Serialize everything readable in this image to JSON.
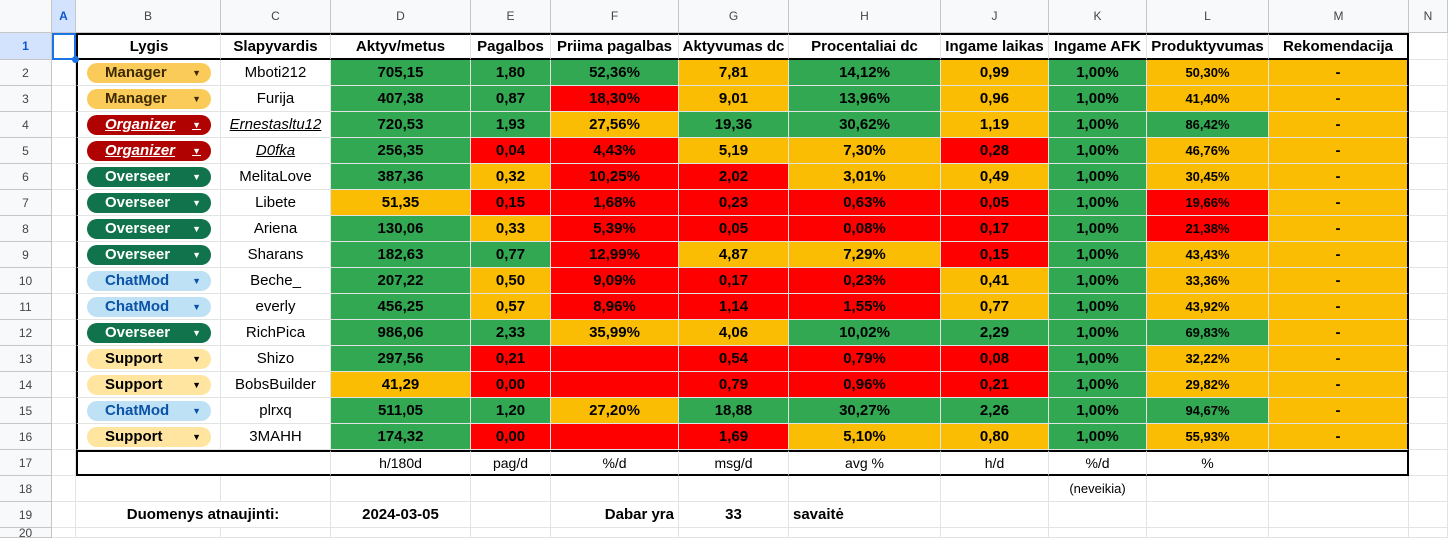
{
  "columns": [
    "A",
    "B",
    "C",
    "D",
    "E",
    "F",
    "G",
    "H",
    "J",
    "K",
    "L",
    "M",
    "N"
  ],
  "selected_column": "A",
  "selected_row": "1",
  "row_numbers": [
    "1",
    "2",
    "3",
    "4",
    "5",
    "6",
    "7",
    "8",
    "9",
    "10",
    "11",
    "12",
    "13",
    "14",
    "15",
    "16",
    "17",
    "18",
    "19",
    "20"
  ],
  "headers": [
    "Lygis",
    "Slapyvardis",
    "Aktyv/metus",
    "Pagalbos",
    "Priima pagalbas",
    "Aktyvumas dc",
    "Procentaliai dc",
    "Ingame laikas",
    "Ingame AFK",
    "Produktyvumas",
    "Rekomendacija"
  ],
  "role_styles": {
    "Manager": "manager",
    "Organizer": "organizer",
    "Overseer": "overseer",
    "ChatMod": "chatmod",
    "Support": "support"
  },
  "colors": {
    "green": "#33a853",
    "yellow": "#fbbc04",
    "red": "#ff0000",
    "selection": "#1a73e8"
  },
  "rows": [
    {
      "role": "Manager",
      "nick": "Mboti212",
      "aktyv": "705,15",
      "pag": "1,80",
      "priima": "52,36%",
      "akt_dc": "7,81",
      "proc_dc": "14,12%",
      "ingame": "0,99",
      "afk": "1,00%",
      "prod": "50,30%",
      "rek": "-",
      "c": [
        "g",
        "g",
        "g",
        "y",
        "g",
        "y",
        "g",
        "y",
        "y"
      ]
    },
    {
      "role": "Manager",
      "nick": "Furija",
      "aktyv": "407,38",
      "pag": "0,87",
      "priima": "18,30%",
      "akt_dc": "9,01",
      "proc_dc": "13,96%",
      "ingame": "0,96",
      "afk": "1,00%",
      "prod": "41,40%",
      "rek": "-",
      "c": [
        "g",
        "g",
        "r",
        "y",
        "g",
        "y",
        "g",
        "y",
        "y"
      ]
    },
    {
      "role": "Organizer",
      "nick": "Ernestasltu12",
      "link": true,
      "aktyv": "720,53",
      "pag": "1,93",
      "priima": "27,56%",
      "akt_dc": "19,36",
      "proc_dc": "30,62%",
      "ingame": "1,19",
      "afk": "1,00%",
      "prod": "86,42%",
      "rek": "-",
      "c": [
        "g",
        "g",
        "y",
        "g",
        "g",
        "y",
        "g",
        "g",
        "y"
      ]
    },
    {
      "role": "Organizer",
      "nick": "D0fka",
      "link": true,
      "aktyv": "256,35",
      "pag": "0,04",
      "priima": "4,43%",
      "akt_dc": "5,19",
      "proc_dc": "7,30%",
      "ingame": "0,28",
      "afk": "1,00%",
      "prod": "46,76%",
      "rek": "-",
      "c": [
        "g",
        "r",
        "r",
        "y",
        "y",
        "r",
        "g",
        "y",
        "y"
      ]
    },
    {
      "role": "Overseer",
      "nick": "MelitaLove",
      "aktyv": "387,36",
      "pag": "0,32",
      "priima": "10,25%",
      "akt_dc": "2,02",
      "proc_dc": "3,01%",
      "ingame": "0,49",
      "afk": "1,00%",
      "prod": "30,45%",
      "rek": "-",
      "c": [
        "g",
        "y",
        "r",
        "r",
        "y",
        "y",
        "g",
        "y",
        "y"
      ]
    },
    {
      "role": "Overseer",
      "nick": "Libete",
      "aktyv": "51,35",
      "pag": "0,15",
      "priima": "1,68%",
      "akt_dc": "0,23",
      "proc_dc": "0,63%",
      "ingame": "0,05",
      "afk": "1,00%",
      "prod": "19,66%",
      "rek": "-",
      "c": [
        "y",
        "r",
        "r",
        "r",
        "r",
        "r",
        "g",
        "r",
        "y"
      ]
    },
    {
      "role": "Overseer",
      "nick": "Ariena",
      "aktyv": "130,06",
      "pag": "0,33",
      "priima": "5,39%",
      "akt_dc": "0,05",
      "proc_dc": "0,08%",
      "ingame": "0,17",
      "afk": "1,00%",
      "prod": "21,38%",
      "rek": "-",
      "c": [
        "g",
        "y",
        "r",
        "r",
        "r",
        "r",
        "g",
        "r",
        "y"
      ]
    },
    {
      "role": "Overseer",
      "nick": "Sharans",
      "aktyv": "182,63",
      "pag": "0,77",
      "priima": "12,99%",
      "akt_dc": "4,87",
      "proc_dc": "7,29%",
      "ingame": "0,15",
      "afk": "1,00%",
      "prod": "43,43%",
      "rek": "-",
      "c": [
        "g",
        "g",
        "r",
        "y",
        "y",
        "r",
        "g",
        "y",
        "y"
      ]
    },
    {
      "role": "ChatMod",
      "nick": "Beche_",
      "aktyv": "207,22",
      "pag": "0,50",
      "priima": "9,09%",
      "akt_dc": "0,17",
      "proc_dc": "0,23%",
      "ingame": "0,41",
      "afk": "1,00%",
      "prod": "33,36%",
      "rek": "-",
      "c": [
        "g",
        "y",
        "r",
        "r",
        "r",
        "y",
        "g",
        "y",
        "y"
      ]
    },
    {
      "role": "ChatMod",
      "nick": "everly",
      "aktyv": "456,25",
      "pag": "0,57",
      "priima": "8,96%",
      "akt_dc": "1,14",
      "proc_dc": "1,55%",
      "ingame": "0,77",
      "afk": "1,00%",
      "prod": "43,92%",
      "rek": "-",
      "c": [
        "g",
        "y",
        "r",
        "r",
        "r",
        "y",
        "g",
        "y",
        "y"
      ]
    },
    {
      "role": "Overseer",
      "nick": "RichPica",
      "aktyv": "986,06",
      "pag": "2,33",
      "priima": "35,99%",
      "akt_dc": "4,06",
      "proc_dc": "10,02%",
      "ingame": "2,29",
      "afk": "1,00%",
      "prod": "69,83%",
      "rek": "-",
      "c": [
        "g",
        "g",
        "y",
        "y",
        "g",
        "g",
        "g",
        "g",
        "y"
      ]
    },
    {
      "role": "Support",
      "nick": "Shizo",
      "aktyv": "297,56",
      "pag": "0,21",
      "priima": "",
      "akt_dc": "0,54",
      "proc_dc": "0,79%",
      "ingame": "0,08",
      "afk": "1,00%",
      "prod": "32,22%",
      "rek": "-",
      "c": [
        "g",
        "r",
        "r",
        "r",
        "r",
        "r",
        "g",
        "y",
        "y"
      ]
    },
    {
      "role": "Support",
      "nick": "BobsBuilder",
      "aktyv": "41,29",
      "pag": "0,00",
      "priima": "",
      "akt_dc": "0,79",
      "proc_dc": "0,96%",
      "ingame": "0,21",
      "afk": "1,00%",
      "prod": "29,82%",
      "rek": "-",
      "c": [
        "y",
        "r",
        "r",
        "r",
        "r",
        "r",
        "g",
        "y",
        "y"
      ]
    },
    {
      "role": "ChatMod",
      "nick": "plrxq",
      "aktyv": "511,05",
      "pag": "1,20",
      "priima": "27,20%",
      "akt_dc": "18,88",
      "proc_dc": "30,27%",
      "ingame": "2,26",
      "afk": "1,00%",
      "prod": "94,67%",
      "rek": "-",
      "c": [
        "g",
        "g",
        "y",
        "g",
        "g",
        "g",
        "g",
        "g",
        "y"
      ]
    },
    {
      "role": "Support",
      "nick": "3MAHH",
      "aktyv": "174,32",
      "pag": "0,00",
      "priima": "",
      "akt_dc": "1,69",
      "proc_dc": "5,10%",
      "ingame": "0,80",
      "afk": "1,00%",
      "prod": "55,93%",
      "rek": "-",
      "c": [
        "g",
        "r",
        "r",
        "r",
        "y",
        "y",
        "g",
        "y",
        "y"
      ]
    }
  ],
  "units": [
    "h/180d",
    "pag/d",
    "%/d",
    "msg/d",
    "avg %",
    "h/d",
    "%/d",
    "%"
  ],
  "afk_note": "(neveikia)",
  "footer": {
    "updated_label": "Duomenys atnaujinti:",
    "updated_date": "2024-03-05",
    "now_label": "Dabar yra",
    "week_number": "33",
    "week_label": "savaitė"
  }
}
